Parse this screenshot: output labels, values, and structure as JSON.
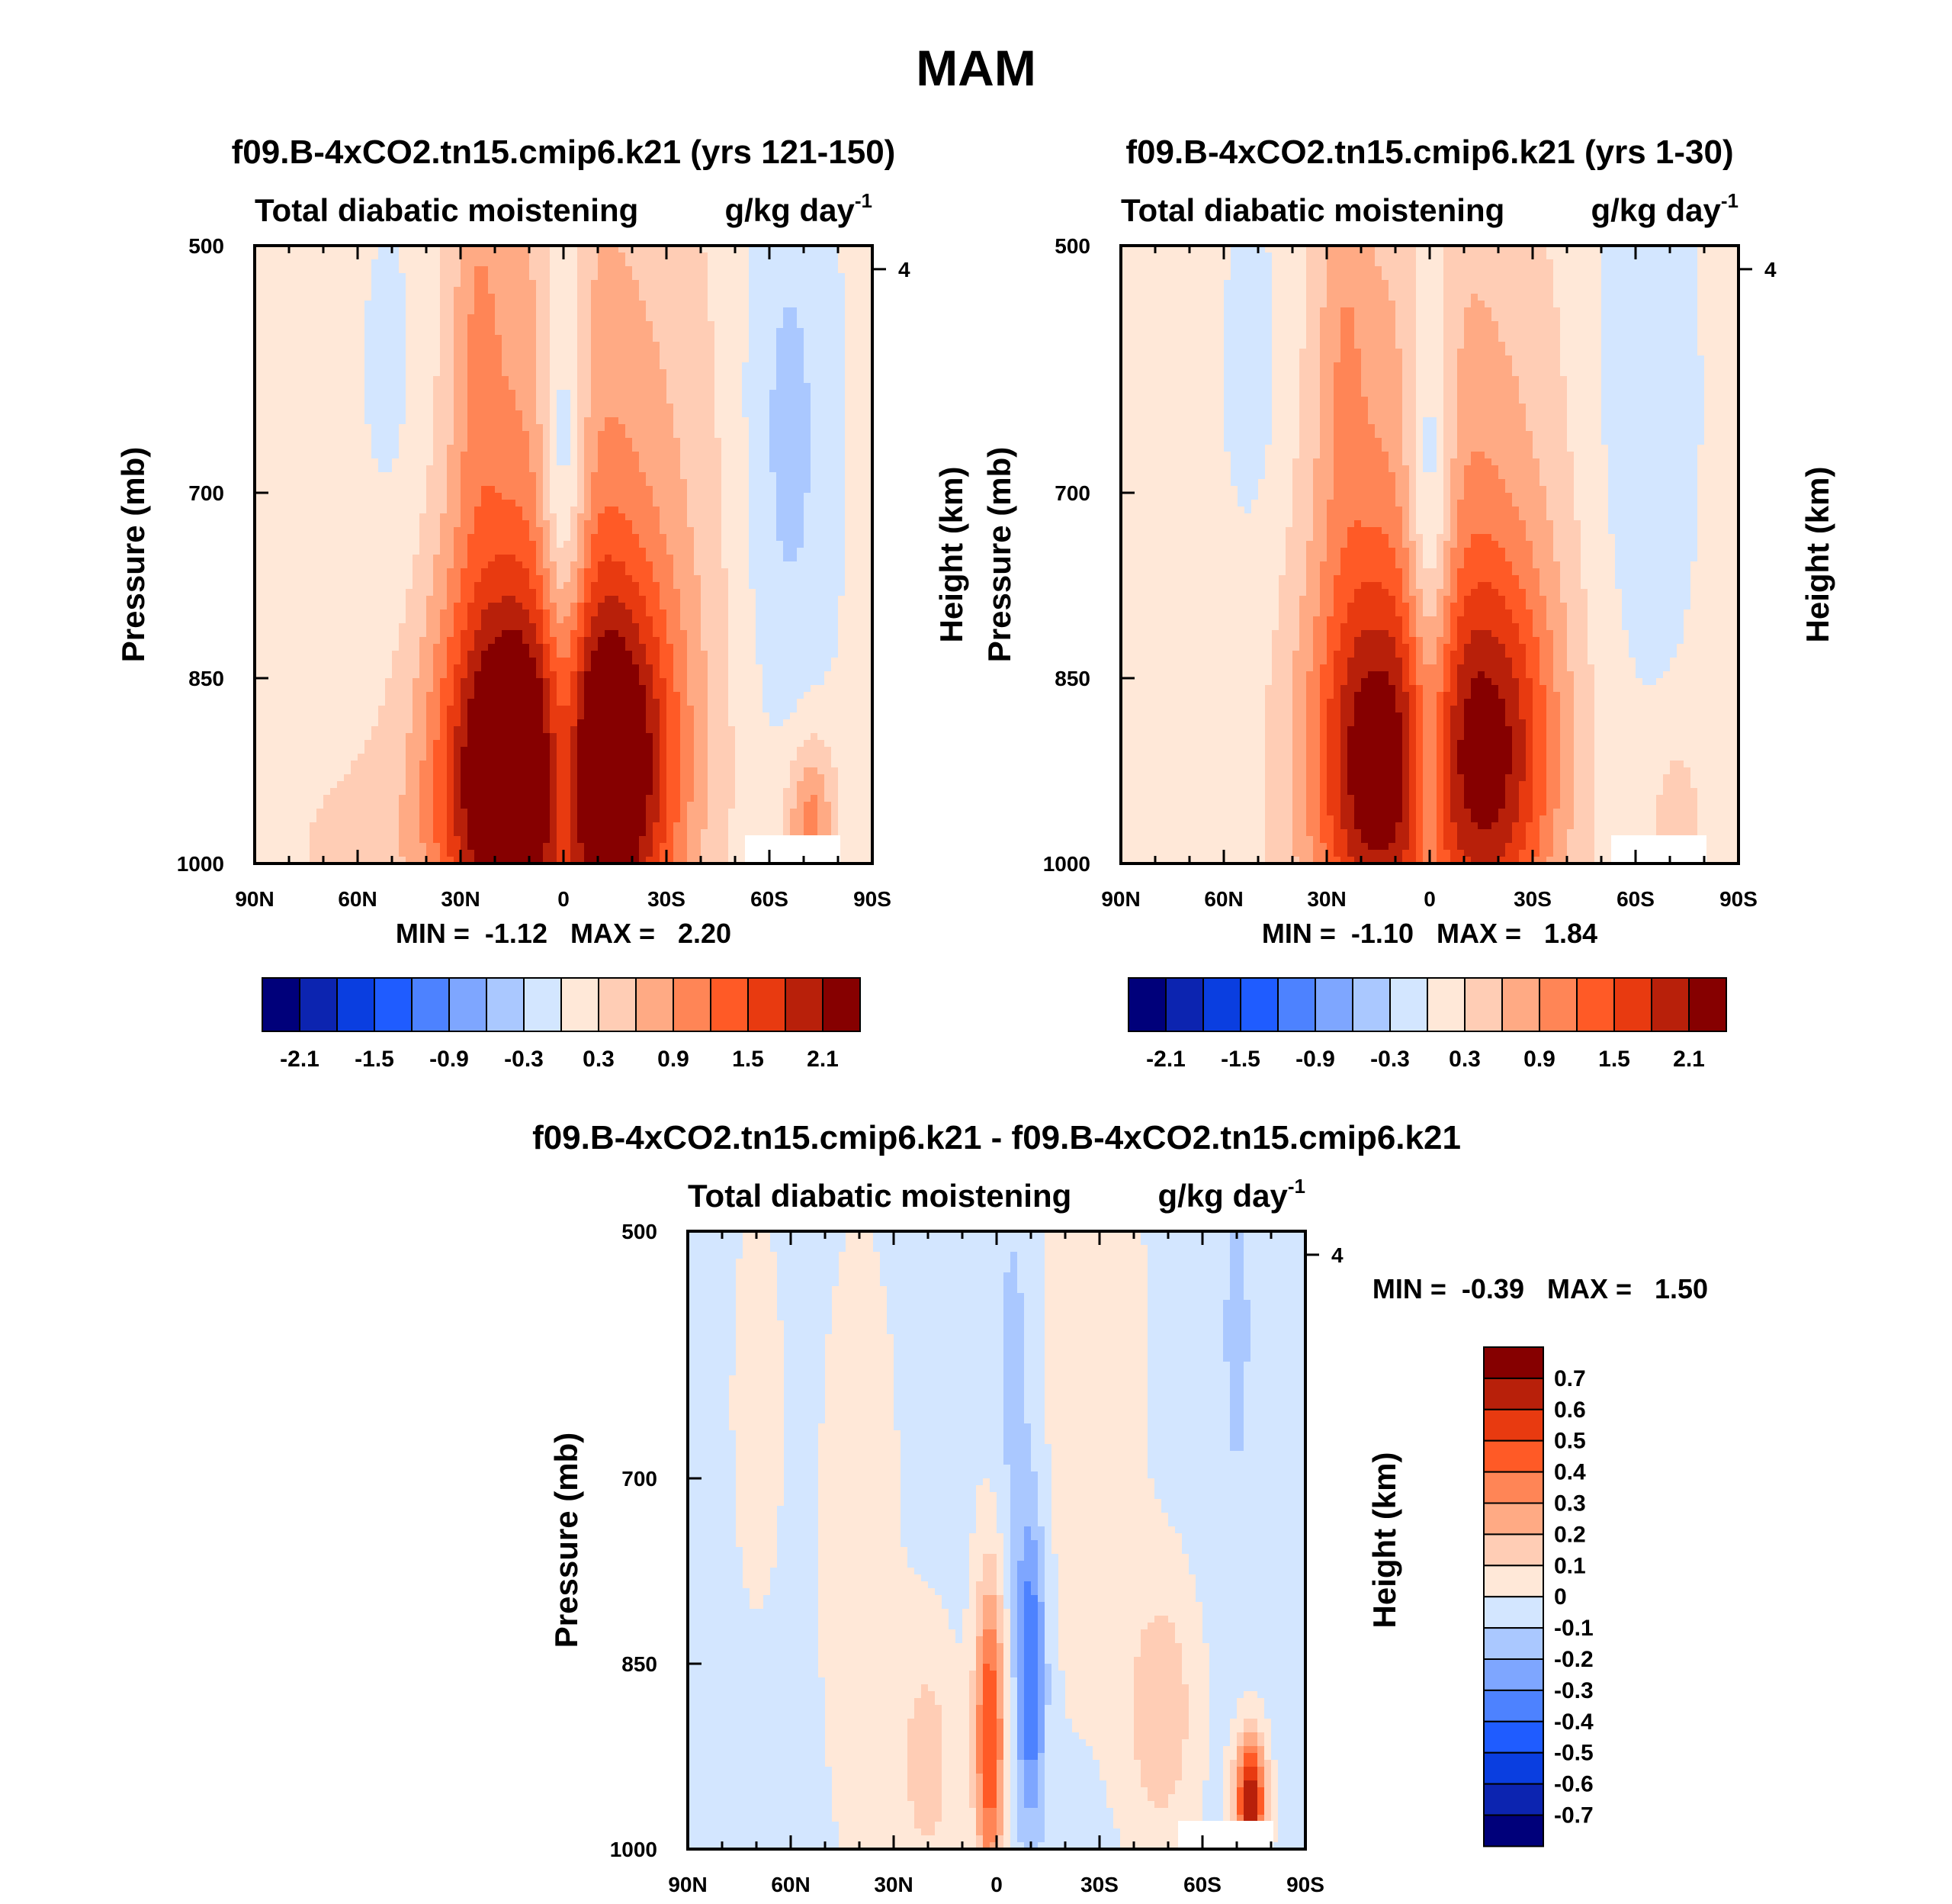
{
  "figure": {
    "title": "MAM"
  },
  "colors": {
    "palette_16": [
      "#00007a",
      "#0c24b0",
      "#0a3ee0",
      "#1f5cff",
      "#4d82ff",
      "#7ea6ff",
      "#aac8ff",
      "#d3e6ff",
      "#ffe8d8",
      "#ffcdb5",
      "#ffaa84",
      "#ff8556",
      "#ff5a26",
      "#e83a10",
      "#b8200a",
      "#860000"
    ],
    "palette_diff": [
      "#00007a",
      "#0c24b0",
      "#0a3ee0",
      "#1f5cff",
      "#4d82ff",
      "#7ea6ff",
      "#aac8ff",
      "#d3e6ff",
      "#ffe8d8",
      "#ffcdb5",
      "#ffaa84",
      "#ff8556",
      "#ff5a26",
      "#e83a10",
      "#b8200a",
      "#860000"
    ]
  },
  "chart_data": [
    {
      "id": "panel1",
      "type": "heatmap",
      "title": "f09.B-4xCO2.tn15.cmip6.k21 (yrs 121-150)",
      "subtitle_left": "Total diabatic moistening",
      "units": "g/kg day",
      "units_exp": "-1",
      "ylabel": "Pressure (mb)",
      "ylabel_right": "Height (km)",
      "x_ticks": [
        "90N",
        "60N",
        "30N",
        "0",
        "30S",
        "60S",
        "90S"
      ],
      "y_ticks": [
        "500",
        "700",
        "850",
        "1000"
      ],
      "y_ticks_right": [
        "4"
      ],
      "x_range": [
        90,
        -90
      ],
      "y_range": [
        1000,
        500
      ],
      "stats": "MIN =  -1.12   MAX =   2.20",
      "min": -1.12,
      "max": 2.2,
      "colorbar_labels": [
        "-2.1",
        "-1.5",
        "-0.9",
        "-0.3",
        "0.3",
        "0.9",
        "1.5",
        "2.1"
      ],
      "colorbar_levels": [
        -2.1,
        -1.8,
        -1.5,
        -1.2,
        -0.9,
        -0.6,
        -0.3,
        0,
        0.3,
        0.6,
        0.9,
        1.2,
        1.5,
        1.8,
        2.1
      ],
      "field": {
        "background": 0.1,
        "blobs": [
          {
            "lat": -15,
            "p": 930,
            "slat": 13,
            "sp": 110,
            "amp": 2.0
          },
          {
            "lat": 18,
            "p": 935,
            "slat": 13,
            "sp": 110,
            "amp": 2.1
          },
          {
            "lat": 0,
            "p": 720,
            "slat": 5,
            "sp": 160,
            "amp": -1.2
          },
          {
            "lat": 0,
            "p": 940,
            "slat": 4,
            "sp": 60,
            "amp": -0.6
          },
          {
            "lat": 8,
            "p": 760,
            "slat": 28,
            "sp": 260,
            "amp": 0.5
          },
          {
            "lat": -8,
            "p": 760,
            "slat": 28,
            "sp": 260,
            "amp": 0.5
          },
          {
            "lat": 48,
            "p": 620,
            "slat": 10,
            "sp": 140,
            "amp": -0.35
          },
          {
            "lat": -65,
            "p": 660,
            "slat": 10,
            "sp": 180,
            "amp": -0.55
          },
          {
            "lat": 25,
            "p": 560,
            "slat": 5,
            "sp": 150,
            "amp": 0.4
          },
          {
            "lat": -72,
            "p": 970,
            "slat": 5,
            "sp": 50,
            "amp": 1.0
          },
          {
            "lat": 60,
            "p": 990,
            "slat": 30,
            "sp": 70,
            "amp": 0.2
          }
        ]
      }
    },
    {
      "id": "panel2",
      "type": "heatmap",
      "title": "f09.B-4xCO2.tn15.cmip6.k21 (yrs 1-30)",
      "subtitle_left": "Total diabatic moistening",
      "units": "g/kg day",
      "units_exp": "-1",
      "ylabel": "Pressure (mb)",
      "ylabel_right": "Height (km)",
      "x_ticks": [
        "90N",
        "60N",
        "30N",
        "0",
        "30S",
        "60S",
        "90S"
      ],
      "y_ticks": [
        "500",
        "700",
        "850",
        "1000"
      ],
      "y_ticks_right": [
        "4"
      ],
      "x_range": [
        90,
        -90
      ],
      "y_range": [
        1000,
        500
      ],
      "stats": "MIN =  -1.10   MAX =   1.84",
      "min": -1.1,
      "max": 1.84,
      "colorbar_labels": [
        "-2.1",
        "-1.5",
        "-0.9",
        "-0.3",
        "0.3",
        "0.9",
        "1.5",
        "2.1"
      ],
      "colorbar_levels": [
        -2.1,
        -1.8,
        -1.5,
        -1.2,
        -0.9,
        -0.6,
        -0.3,
        0,
        0.3,
        0.6,
        0.9,
        1.2,
        1.5,
        1.8,
        2.1
      ],
      "field": {
        "background": 0.1,
        "blobs": [
          {
            "lat": -18,
            "p": 920,
            "slat": 13,
            "sp": 110,
            "amp": 1.6
          },
          {
            "lat": 17,
            "p": 930,
            "slat": 12,
            "sp": 110,
            "amp": 1.7
          },
          {
            "lat": 0,
            "p": 730,
            "slat": 5,
            "sp": 150,
            "amp": -1.1
          },
          {
            "lat": 0,
            "p": 940,
            "slat": 3,
            "sp": 60,
            "amp": -0.5
          },
          {
            "lat": 8,
            "p": 770,
            "slat": 28,
            "sp": 250,
            "amp": 0.45
          },
          {
            "lat": -8,
            "p": 770,
            "slat": 28,
            "sp": 250,
            "amp": 0.45
          },
          {
            "lat": 50,
            "p": 620,
            "slat": 9,
            "sp": 140,
            "amp": -0.35
          },
          {
            "lat": -60,
            "p": 640,
            "slat": 13,
            "sp": 200,
            "amp": -0.35
          },
          {
            "lat": 25,
            "p": 560,
            "slat": 5,
            "sp": 150,
            "amp": 0.4
          },
          {
            "lat": -72,
            "p": 970,
            "slat": 5,
            "sp": 50,
            "amp": 0.45
          }
        ]
      }
    },
    {
      "id": "panel3",
      "type": "heatmap",
      "title": "f09.B-4xCO2.tn15.cmip6.k21 - f09.B-4xCO2.tn15.cmip6.k21",
      "subtitle_left": "Total diabatic moistening",
      "units": "g/kg day",
      "units_exp": "-1",
      "ylabel": "Pressure (mb)",
      "ylabel_right": "Height (km)",
      "x_ticks": [
        "90N",
        "60N",
        "30N",
        "0",
        "30S",
        "60S",
        "90S"
      ],
      "y_ticks": [
        "500",
        "700",
        "850",
        "1000"
      ],
      "y_ticks_right": [
        "4"
      ],
      "x_range": [
        90,
        -90
      ],
      "y_range": [
        1000,
        500
      ],
      "stats": "MIN =  -0.39   MAX =   1.50",
      "min": -0.39,
      "max": 1.5,
      "colorbar_labels": [
        "0.7",
        "0.6",
        "0.5",
        "0.4",
        "0.3",
        "0.2",
        "0.1",
        "0",
        "-0.1",
        "-0.2",
        "-0.3",
        "-0.4",
        "-0.5",
        "-0.6",
        "-0.7"
      ],
      "colorbar_levels": [
        -0.7,
        -0.6,
        -0.5,
        -0.4,
        -0.3,
        -0.2,
        -0.1,
        0,
        0.1,
        0.2,
        0.3,
        0.4,
        0.5,
        0.6,
        0.7
      ],
      "field": {
        "background": -0.03,
        "blobs": [
          {
            "lat": 2,
            "p": 910,
            "slat": 3,
            "sp": 90,
            "amp": 0.55
          },
          {
            "lat": -10,
            "p": 860,
            "slat": 3,
            "sp": 90,
            "amp": -0.4
          },
          {
            "lat": 20,
            "p": 930,
            "slat": 6,
            "sp": 70,
            "amp": 0.18
          },
          {
            "lat": -48,
            "p": 890,
            "slat": 7,
            "sp": 70,
            "amp": 0.22
          },
          {
            "lat": -74,
            "p": 960,
            "slat": 3,
            "sp": 35,
            "amp": 0.75
          },
          {
            "lat": -25,
            "p": 700,
            "slat": 15,
            "sp": 200,
            "amp": 0.05
          },
          {
            "lat": 40,
            "p": 760,
            "slat": 10,
            "sp": 230,
            "amp": 0.06
          },
          {
            "lat": -5,
            "p": 620,
            "slat": 4,
            "sp": 120,
            "amp": -0.12
          },
          {
            "lat": -70,
            "p": 580,
            "slat": 3,
            "sp": 100,
            "amp": -0.12
          },
          {
            "lat": 70,
            "p": 640,
            "slat": 6,
            "sp": 140,
            "amp": 0.06
          },
          {
            "lat": -30,
            "p": 560,
            "slat": 8,
            "sp": 110,
            "amp": 0.06
          }
        ]
      }
    }
  ]
}
